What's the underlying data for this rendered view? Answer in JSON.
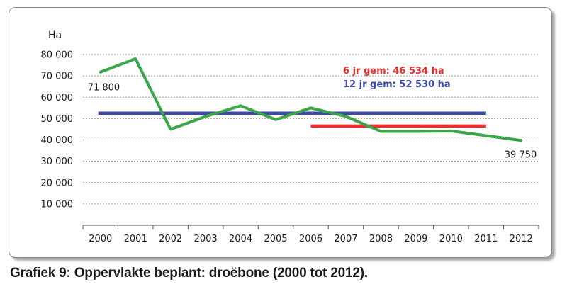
{
  "caption": "Grafiek 9: Oppervlakte beplant: droëbone (2000 tot 2012).",
  "chart_data": {
    "type": "line",
    "ylabel": "Ha",
    "xlabel": "",
    "categories": [
      "2000",
      "2001",
      "2002",
      "2003",
      "2004",
      "2005",
      "2006",
      "2007",
      "2008",
      "2009",
      "2010",
      "2011",
      "2012"
    ],
    "ylim": [
      0,
      80000
    ],
    "yticks": [
      10000,
      20000,
      30000,
      40000,
      50000,
      60000,
      70000,
      80000
    ],
    "ytick_labels": [
      "10 000",
      "20 000",
      "30 000",
      "40 000",
      "50 000",
      "60 000",
      "70 000",
      "80 000"
    ],
    "grid": true,
    "series": [
      {
        "color": "#3aa64a",
        "values": [
          71800,
          78000,
          45000,
          51000,
          56000,
          49500,
          55000,
          51000,
          44000,
          44000,
          44200,
          42000,
          39750
        ]
      }
    ],
    "reference_lines": [
      {
        "label": "12 jr gem: 52 530 ha",
        "value": 52530,
        "from": "2000",
        "to": "2011",
        "color": "#3b4aa8"
      },
      {
        "label": "6 jr gem: 46 534 ha",
        "value": 46534,
        "from": "2006",
        "to": "2011",
        "color": "#e8312c"
      }
    ],
    "data_labels": [
      {
        "category": "2000",
        "text": "71 800"
      },
      {
        "category": "2012",
        "text": "39 750"
      }
    ]
  }
}
